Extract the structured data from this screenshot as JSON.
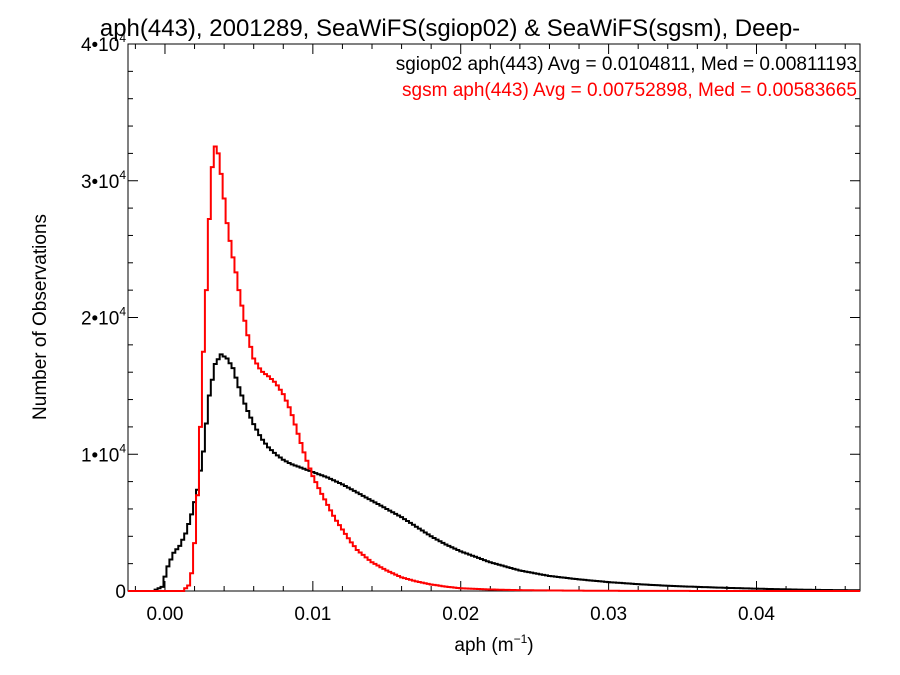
{
  "chart_data": {
    "type": "line",
    "title": "aph(443), 2001289, SeaWiFS(sgiop02) & SeaWiFS(sgsm), Deep-",
    "xlabel": "aph (m",
    "xlabel_sup": "−1",
    "xlabel_close": ")",
    "ylabel": "Number of Observations",
    "xlim": [
      -0.0025,
      0.047
    ],
    "ylim": [
      0,
      40000
    ],
    "grid": false,
    "legend_position": "top-right",
    "x_ticks": [
      {
        "value": 0.0,
        "label": "0.00"
      },
      {
        "value": 0.01,
        "label": "0.01"
      },
      {
        "value": 0.02,
        "label": "0.02"
      },
      {
        "value": 0.03,
        "label": "0.03"
      },
      {
        "value": 0.04,
        "label": "0.04"
      }
    ],
    "y_ticks": [
      {
        "value": 0,
        "mant": "0",
        "exp": ""
      },
      {
        "value": 10000,
        "mant": "1•10",
        "exp": "4"
      },
      {
        "value": 20000,
        "mant": "2•10",
        "exp": "4"
      },
      {
        "value": 30000,
        "mant": "3•10",
        "exp": "4"
      },
      {
        "value": 40000,
        "mant": "4•10",
        "exp": "4"
      }
    ],
    "series": [
      {
        "legend": "sgiop02 aph(443) Avg = 0.0104811, Med = 0.00811193",
        "color": "#000000",
        "points": [
          [
            -0.0025,
            0
          ],
          [
            -0.0008,
            0
          ],
          [
            -0.0002,
            300
          ],
          [
            0.0002,
            1800
          ],
          [
            0.0006,
            2800
          ],
          [
            0.001,
            3300
          ],
          [
            0.0014,
            4200
          ],
          [
            0.0018,
            5600
          ],
          [
            0.0022,
            7400
          ],
          [
            0.0026,
            10200
          ],
          [
            0.003,
            14300
          ],
          [
            0.0034,
            16600
          ],
          [
            0.0038,
            17300
          ],
          [
            0.0042,
            17000
          ],
          [
            0.0046,
            16300
          ],
          [
            0.005,
            14900
          ],
          [
            0.0055,
            13400
          ],
          [
            0.006,
            12200
          ],
          [
            0.0065,
            11200
          ],
          [
            0.007,
            10500
          ],
          [
            0.0075,
            10000
          ],
          [
            0.008,
            9600
          ],
          [
            0.0085,
            9300
          ],
          [
            0.009,
            9100
          ],
          [
            0.0095,
            8900
          ],
          [
            0.01,
            8700
          ],
          [
            0.011,
            8300
          ],
          [
            0.012,
            7800
          ],
          [
            0.013,
            7200
          ],
          [
            0.014,
            6600
          ],
          [
            0.015,
            6000
          ],
          [
            0.016,
            5400
          ],
          [
            0.017,
            4700
          ],
          [
            0.018,
            4000
          ],
          [
            0.019,
            3400
          ],
          [
            0.02,
            2900
          ],
          [
            0.021,
            2500
          ],
          [
            0.022,
            2100
          ],
          [
            0.023,
            1800
          ],
          [
            0.024,
            1500
          ],
          [
            0.025,
            1300
          ],
          [
            0.026,
            1100
          ],
          [
            0.028,
            850
          ],
          [
            0.03,
            650
          ],
          [
            0.032,
            500
          ],
          [
            0.034,
            380
          ],
          [
            0.036,
            300
          ],
          [
            0.038,
            230
          ],
          [
            0.04,
            170
          ],
          [
            0.042,
            120
          ],
          [
            0.044,
            80
          ],
          [
            0.047,
            50
          ]
        ]
      },
      {
        "legend": "sgsm aph(443) Avg = 0.00752898, Med = 0.00583665",
        "color": "#ff0000",
        "points": [
          [
            -0.0025,
            0
          ],
          [
            0.0012,
            0
          ],
          [
            0.0016,
            400
          ],
          [
            0.0018,
            1300
          ],
          [
            0.002,
            3500
          ],
          [
            0.0022,
            7000
          ],
          [
            0.0024,
            12000
          ],
          [
            0.0026,
            17500
          ],
          [
            0.0028,
            22000
          ],
          [
            0.003,
            27200
          ],
          [
            0.0032,
            31000
          ],
          [
            0.0034,
            32500
          ],
          [
            0.0036,
            32000
          ],
          [
            0.0038,
            30500
          ],
          [
            0.004,
            28700
          ],
          [
            0.0042,
            26900
          ],
          [
            0.0044,
            25600
          ],
          [
            0.0046,
            24400
          ],
          [
            0.0048,
            23300
          ],
          [
            0.005,
            22000
          ],
          [
            0.0053,
            20300
          ],
          [
            0.0056,
            18700
          ],
          [
            0.006,
            17000
          ],
          [
            0.0065,
            16100
          ],
          [
            0.007,
            15700
          ],
          [
            0.0075,
            15200
          ],
          [
            0.008,
            14400
          ],
          [
            0.0085,
            13200
          ],
          [
            0.009,
            11500
          ],
          [
            0.0095,
            9800
          ],
          [
            0.01,
            8400
          ],
          [
            0.0105,
            7300
          ],
          [
            0.011,
            6300
          ],
          [
            0.0115,
            5300
          ],
          [
            0.012,
            4500
          ],
          [
            0.0125,
            3700
          ],
          [
            0.013,
            3000
          ],
          [
            0.014,
            2100
          ],
          [
            0.015,
            1500
          ],
          [
            0.016,
            1000
          ],
          [
            0.017,
            700
          ],
          [
            0.018,
            480
          ],
          [
            0.019,
            320
          ],
          [
            0.02,
            200
          ],
          [
            0.022,
            110
          ],
          [
            0.024,
            60
          ],
          [
            0.027,
            30
          ],
          [
            0.03,
            15
          ],
          [
            0.035,
            5
          ],
          [
            0.047,
            0
          ]
        ]
      }
    ]
  }
}
